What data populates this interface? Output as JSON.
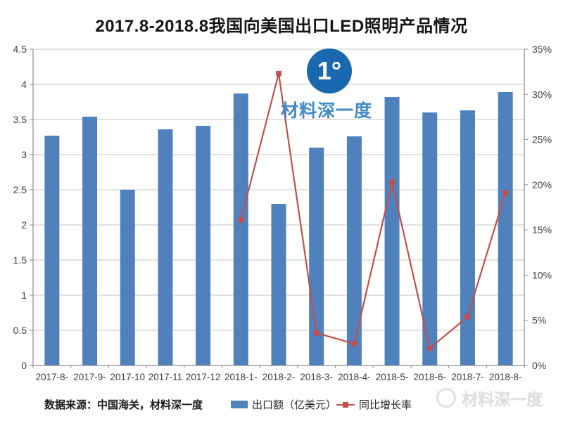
{
  "title": {
    "text": "2017.8-2018.8我国向美国出口LED照明产品情况"
  },
  "watermark_center": {
    "logo_glyph": "1°",
    "brand": "材料深一度"
  },
  "watermark_corner": {
    "brand": "材料深一度"
  },
  "footer": {
    "source": "数据来源：中国海关，材料深一度",
    "legend": [
      {
        "label": "出口额（亿美元）",
        "marker": "bar-swatch",
        "color": "#4F81BD"
      },
      {
        "label": "同比增长率",
        "marker": "line-square-swatch",
        "color": "#C0504D"
      }
    ]
  },
  "colors": {
    "bar": "#4F81BD",
    "line": "#C0504D",
    "grid": "#C4C4C4",
    "axis": "#8C8C8C",
    "tick_text": "#3F3F3F",
    "logo_blue": "#1A69B0",
    "brand_blue": "#4189C7",
    "watermark_gray": "#DEDEDE"
  },
  "chart_data": {
    "type": "bar+line combo",
    "title": "2017.8-2018.8我国向美国出口LED照明产品情况",
    "categories": [
      "2017-8-",
      "2017-9-",
      "2017-10",
      "2017-11",
      "2017-12",
      "2018-1-",
      "2018-2-",
      "2018-3-",
      "2018-4-",
      "2018-5-",
      "2018-6-",
      "2018-7-",
      "2018-8-"
    ],
    "series": [
      {
        "name": "出口额（亿美元）",
        "type": "bar",
        "axis": "left",
        "color": "#4F81BD",
        "values": [
          3.27,
          3.54,
          2.5,
          3.36,
          3.41,
          3.87,
          2.3,
          3.1,
          3.26,
          3.82,
          3.6,
          3.63,
          3.89
        ]
      },
      {
        "name": "同比增长率",
        "type": "line",
        "axis": "right",
        "color": "#C0504D",
        "unit": "%",
        "values": [
          null,
          null,
          null,
          null,
          null,
          16.1,
          32.3,
          3.6,
          2.4,
          20.3,
          1.9,
          5.4,
          19.1
        ]
      }
    ],
    "left_axis": {
      "min": 0,
      "max": 4.5,
      "step": 0.5,
      "tick_labels": [
        "4.5",
        "4",
        "3.5",
        "3",
        "2.5",
        "2",
        "1.5",
        "1",
        "0.5",
        "0"
      ]
    },
    "right_axis": {
      "min": 0,
      "max": 35,
      "step": 5,
      "tick_labels": [
        "35%",
        "30%",
        "25%",
        "20%",
        "15%",
        "10%",
        "5%",
        "0%"
      ]
    },
    "grid": true,
    "legend_position": "bottom"
  }
}
